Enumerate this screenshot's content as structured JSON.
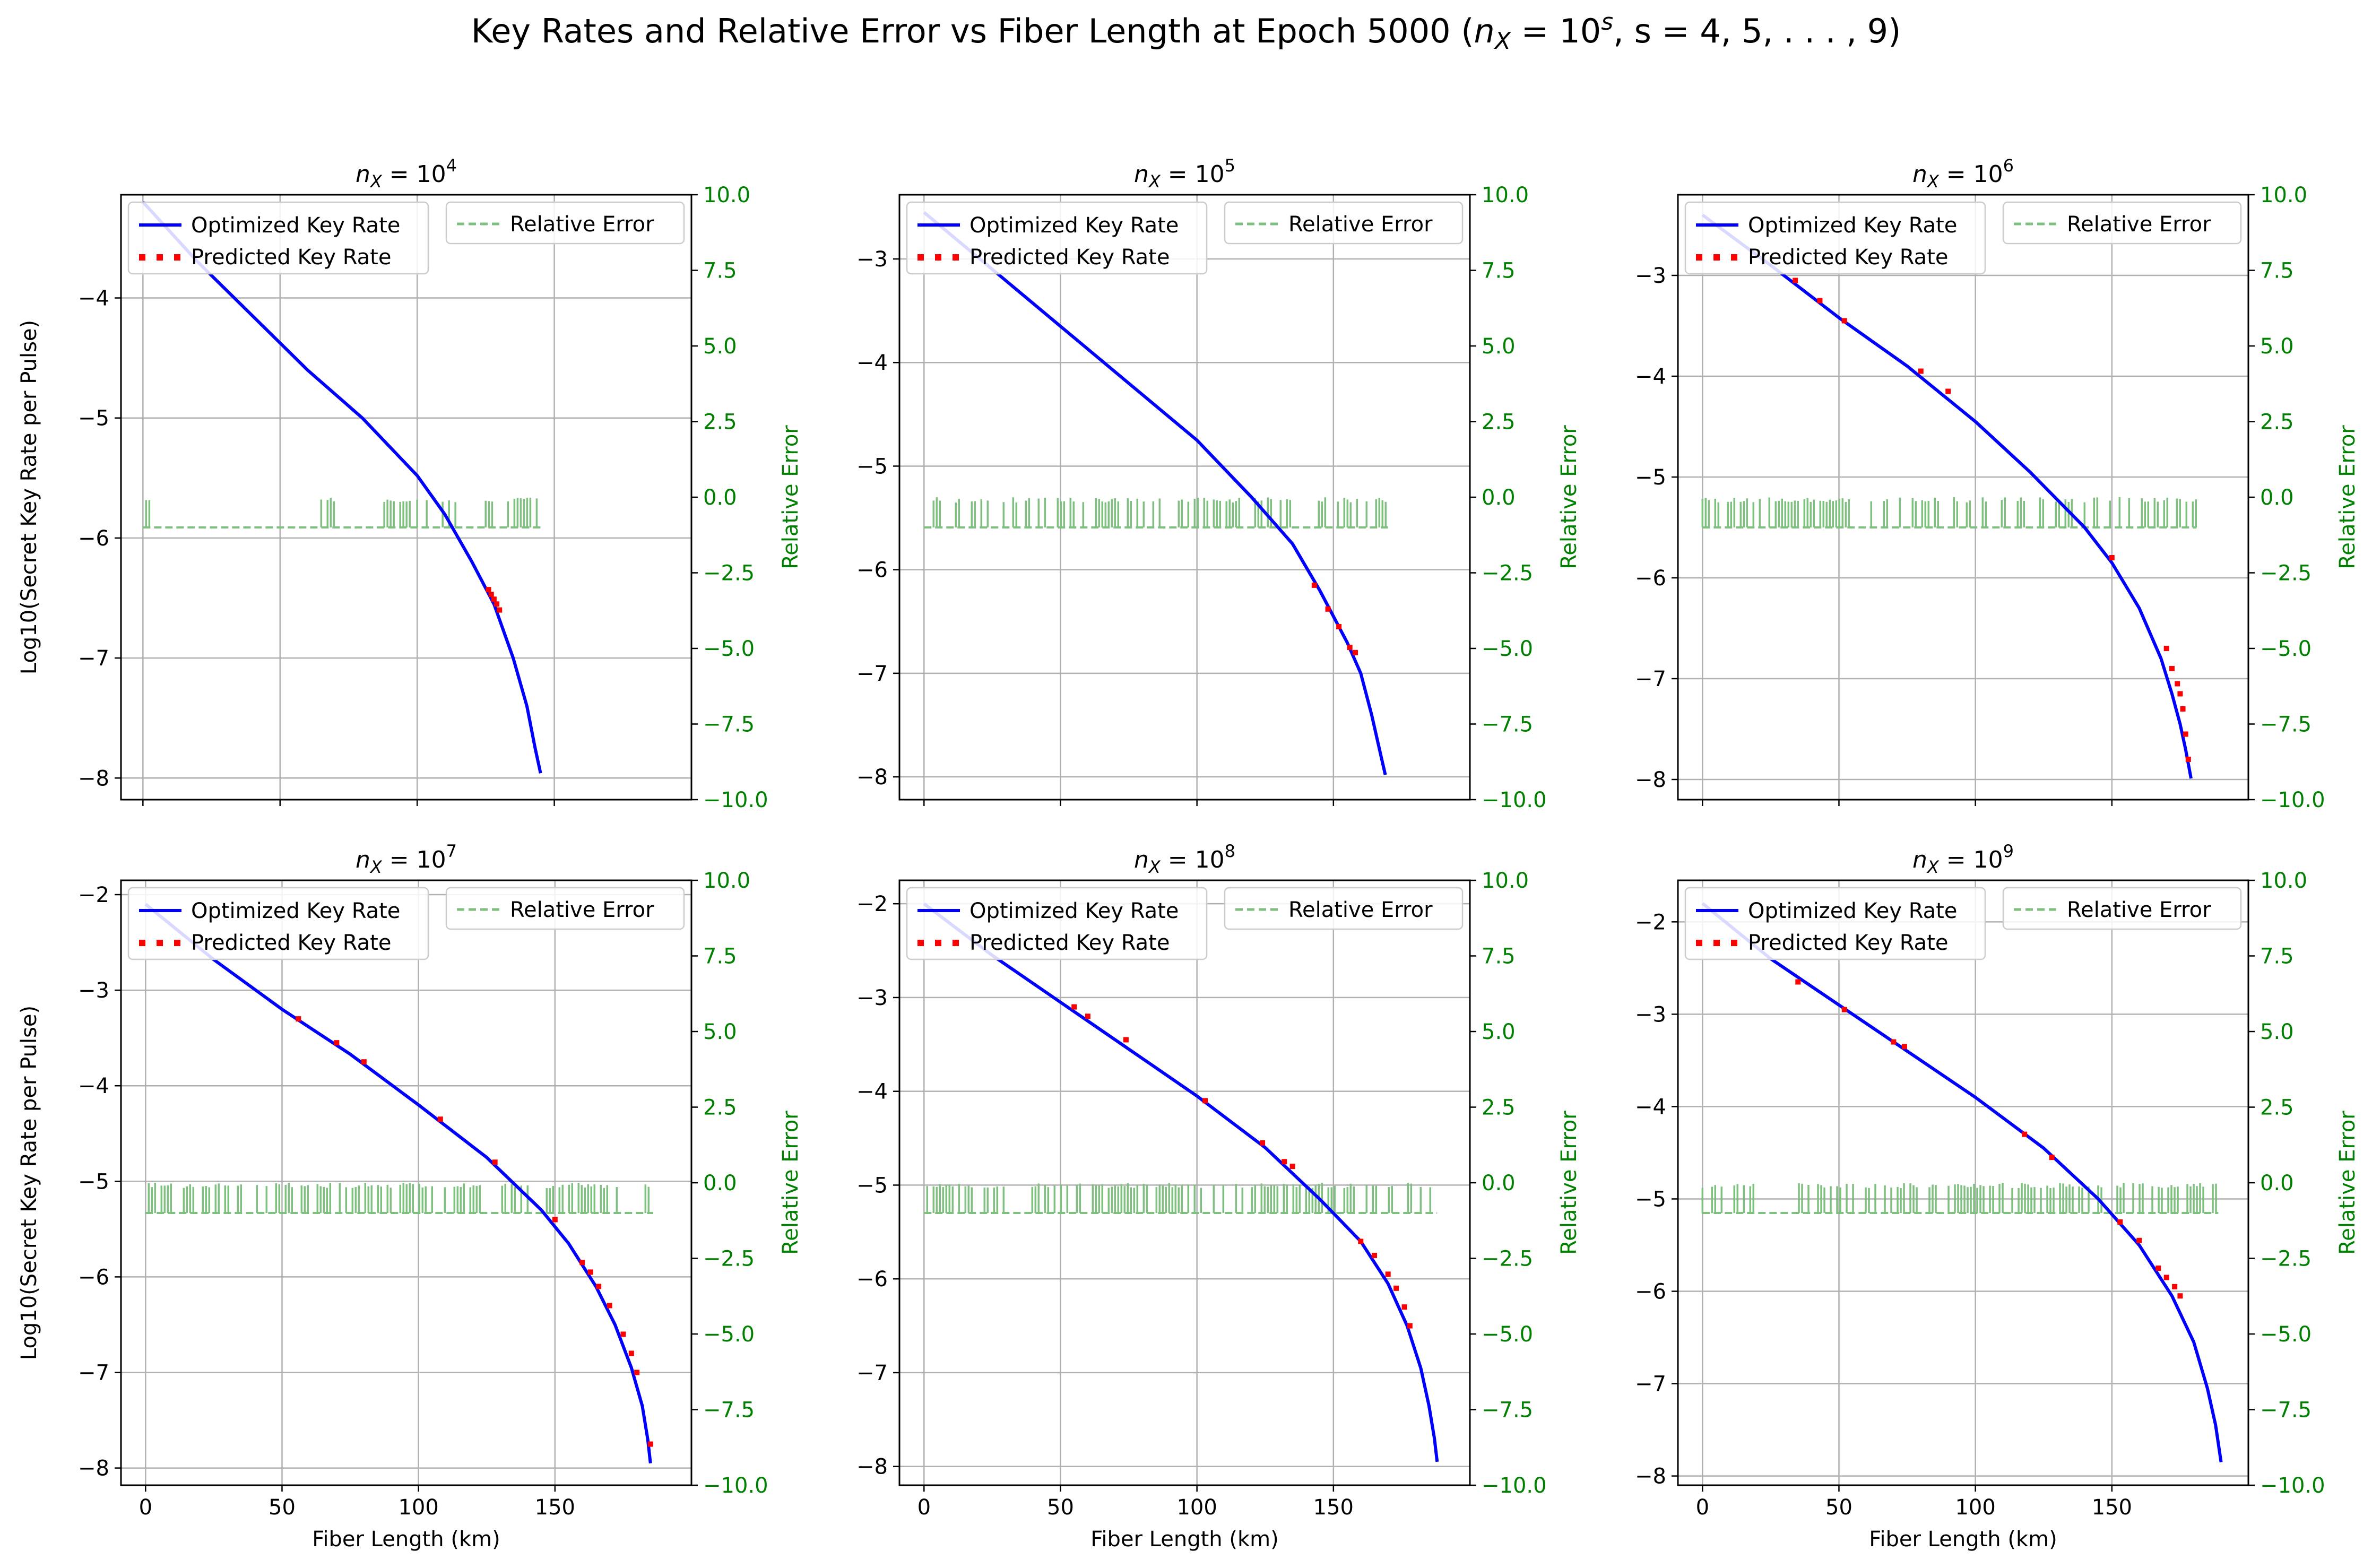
{
  "figure": {
    "title": "Key Rates and Relative Error vs Fiber Length at Epoch 5000 ($n_X = 10^s, s = 4, 5, ..., 9$)",
    "title_parts": {
      "prefix": "Key Rates and Relative Error vs Fiber Length at Epoch 5000 (",
      "expr": "n",
      "sub": "X",
      "eq": " = 10",
      "sup": "s",
      "suffix": ", s = 4, 5, . . . , 9)"
    }
  },
  "colors": {
    "optimized": "#0000ff",
    "predicted": "#ff0000",
    "relative_error": "#7fbf7f",
    "right_axis": "#008000",
    "grid": "#b0b0b0"
  },
  "chart_data": [
    {
      "type": "line",
      "title": "n_X = 10^4",
      "title_base": "10",
      "title_exp": "4",
      "xlabel": "",
      "ylabel": "Log10(Secret Key Rate per Pulse)",
      "ylabel_right": "Relative Error",
      "xlim": [
        -8,
        200
      ],
      "ylim": [
        -8.18,
        -3.14
      ],
      "y2lim": [
        -10,
        10
      ],
      "xticks": [
        0,
        50,
        100,
        150
      ],
      "yticks": [
        -8,
        -7,
        -6,
        -5,
        -4
      ],
      "y2ticks": [
        -10.0,
        -7.5,
        -5.0,
        -2.5,
        0.0,
        2.5,
        5.0,
        7.5,
        10.0
      ],
      "show_xticklabels": false,
      "grid": true,
      "legend_left": [
        "Optimized Key Rate",
        "Predicted Key Rate"
      ],
      "legend_right": [
        "Relative Error"
      ],
      "legend_placement": [
        "upper left",
        "upper right"
      ],
      "series": [
        {
          "name": "Optimized Key Rate",
          "style": "solid",
          "x": [
            0,
            20,
            40,
            60,
            80,
            100,
            110,
            120,
            128,
            135,
            140,
            143,
            145
          ],
          "y": [
            -3.2,
            -3.7,
            -4.15,
            -4.6,
            -5.0,
            -5.48,
            -5.8,
            -6.2,
            -6.55,
            -7.0,
            -7.4,
            -7.75,
            -7.96
          ]
        },
        {
          "name": "Predicted Key Rate",
          "style": "dotted",
          "x": [
            126,
            127,
            128,
            129,
            130
          ],
          "y": [
            -6.43,
            -6.47,
            -6.51,
            -6.55,
            -6.6
          ]
        },
        {
          "name": "Relative Error",
          "axis": "right",
          "style": "dashed",
          "level": -1.0,
          "x_range": [
            0,
            146
          ],
          "spike_segments": [
            [
              0,
              6
            ],
            [
              65,
              75
            ],
            [
              88,
              98
            ],
            [
              100,
              115
            ],
            [
              118,
              125
            ],
            [
              125,
              146
            ]
          ],
          "spike_top": 0.0
        }
      ]
    },
    {
      "type": "line",
      "title": "n_X = 10^5",
      "title_base": "10",
      "title_exp": "5",
      "xlabel": "",
      "ylabel": "",
      "ylabel_right": "Relative Error",
      "xlim": [
        -9,
        200
      ],
      "ylim": [
        -8.22,
        -2.38
      ],
      "y2lim": [
        -10,
        10
      ],
      "xticks": [
        0,
        50,
        100,
        150
      ],
      "yticks": [
        -8,
        -7,
        -6,
        -5,
        -4,
        -3
      ],
      "y2ticks": [
        -10.0,
        -7.5,
        -5.0,
        -2.5,
        0.0,
        2.5,
        5.0,
        7.5,
        10.0
      ],
      "show_xticklabels": false,
      "grid": true,
      "legend_left": [
        "Optimized Key Rate",
        "Predicted Key Rate"
      ],
      "legend_right": [
        "Relative Error"
      ],
      "legend_placement": [
        "upper left",
        "upper right"
      ],
      "series": [
        {
          "name": "Optimized Key Rate",
          "style": "solid",
          "x": [
            0,
            25,
            50,
            75,
            100,
            120,
            135,
            145,
            150,
            155,
            160,
            164,
            167,
            169
          ],
          "y": [
            -2.55,
            -3.1,
            -3.65,
            -4.2,
            -4.75,
            -5.3,
            -5.75,
            -6.2,
            -6.45,
            -6.7,
            -7.0,
            -7.4,
            -7.75,
            -7.98
          ]
        },
        {
          "name": "Predicted Key Rate",
          "style": "dotted",
          "x": [
            143,
            148,
            152,
            156,
            158
          ],
          "y": [
            -6.15,
            -6.38,
            -6.55,
            -6.75,
            -6.8
          ]
        },
        {
          "name": "Relative Error",
          "axis": "right",
          "style": "dashed",
          "level": -1.0,
          "x_range": [
            0,
            170
          ],
          "spike_segments": [
            [
              0,
              170
            ]
          ],
          "spike_top": 0.0
        }
      ]
    },
    {
      "type": "line",
      "title": "n_X = 10^6",
      "title_base": "10",
      "title_exp": "6",
      "xlabel": "",
      "ylabel": "",
      "ylabel_right": "Relative Error",
      "xlim": [
        -9,
        200
      ],
      "ylim": [
        -8.2,
        -2.2
      ],
      "y2lim": [
        -10,
        10
      ],
      "xticks": [
        0,
        50,
        100,
        150
      ],
      "yticks": [
        -8,
        -7,
        -6,
        -5,
        -4,
        -3
      ],
      "y2ticks": [
        -10.0,
        -7.5,
        -5.0,
        -2.5,
        0.0,
        2.5,
        5.0,
        7.5,
        10.0
      ],
      "show_xticklabels": false,
      "grid": true,
      "legend_left": [
        "Optimized Key Rate",
        "Predicted Key Rate"
      ],
      "legend_right": [
        "Relative Error"
      ],
      "legend_placement": [
        "upper left",
        "upper right"
      ],
      "series": [
        {
          "name": "Optimized Key Rate",
          "style": "solid",
          "x": [
            0,
            25,
            50,
            75,
            100,
            120,
            140,
            150,
            160,
            168,
            172,
            175,
            177,
            179
          ],
          "y": [
            -2.4,
            -2.9,
            -3.42,
            -3.9,
            -4.45,
            -4.95,
            -5.5,
            -5.85,
            -6.3,
            -6.8,
            -7.15,
            -7.45,
            -7.7,
            -7.99
          ]
        },
        {
          "name": "Predicted Key Rate",
          "style": "dotted",
          "x": [
            34,
            43,
            52,
            80,
            90,
            150,
            170,
            172,
            174,
            175,
            176,
            177,
            178
          ],
          "y": [
            -3.05,
            -3.25,
            -3.45,
            -3.95,
            -4.15,
            -5.8,
            -6.7,
            -6.9,
            -7.05,
            -7.15,
            -7.3,
            -7.55,
            -7.8
          ]
        },
        {
          "name": "Relative Error",
          "axis": "right",
          "style": "dashed",
          "level": -1.0,
          "x_range": [
            0,
            181
          ],
          "spike_segments": [
            [
              0,
              181
            ]
          ],
          "spike_top": 0.0
        }
      ]
    },
    {
      "type": "line",
      "title": "n_X = 10^7",
      "title_base": "10",
      "title_exp": "7",
      "xlabel": "Fiber Length (km)",
      "ylabel": "Log10(Secret Key Rate per Pulse)",
      "ylabel_right": "Relative Error",
      "xlim": [
        -9,
        200
      ],
      "ylim": [
        -8.18,
        -1.85
      ],
      "y2lim": [
        -10,
        10
      ],
      "xticks": [
        0,
        50,
        100,
        150
      ],
      "yticks": [
        -8,
        -7,
        -6,
        -5,
        -4,
        -3,
        -2
      ],
      "y2ticks": [
        -10.0,
        -7.5,
        -5.0,
        -2.5,
        0.0,
        2.5,
        5.0,
        7.5,
        10.0
      ],
      "show_xticklabels": true,
      "grid": true,
      "legend_left": [
        "Optimized Key Rate",
        "Predicted Key Rate"
      ],
      "legend_right": [
        "Relative Error"
      ],
      "legend_placement": [
        "upper left",
        "upper right"
      ],
      "series": [
        {
          "name": "Optimized Key Rate",
          "style": "solid",
          "x": [
            0,
            25,
            50,
            75,
            100,
            125,
            145,
            155,
            165,
            172,
            178,
            182,
            184,
            185
          ],
          "y": [
            -2.1,
            -2.68,
            -3.2,
            -3.67,
            -4.2,
            -4.75,
            -5.3,
            -5.65,
            -6.1,
            -6.5,
            -6.95,
            -7.35,
            -7.7,
            -7.95
          ]
        },
        {
          "name": "Predicted Key Rate",
          "style": "dotted",
          "x": [
            56,
            70,
            80,
            108,
            128,
            150,
            160,
            163,
            166,
            170,
            175,
            178,
            180,
            185
          ],
          "y": [
            -3.3,
            -3.55,
            -3.75,
            -4.35,
            -4.8,
            -5.4,
            -5.85,
            -5.95,
            -6.1,
            -6.3,
            -6.6,
            -6.8,
            -7.0,
            -7.75
          ]
        },
        {
          "name": "Relative Error",
          "axis": "right",
          "style": "dashed",
          "level": -1.0,
          "x_range": [
            0,
            186
          ],
          "spike_segments": [
            [
              0,
              186
            ]
          ],
          "spike_top": 0.0
        }
      ]
    },
    {
      "type": "line",
      "title": "n_X = 10^8",
      "title_base": "10",
      "title_exp": "8",
      "xlabel": "Fiber Length (km)",
      "ylabel": "",
      "ylabel_right": "Relative Error",
      "xlim": [
        -9,
        200
      ],
      "ylim": [
        -8.2,
        -1.75
      ],
      "y2lim": [
        -10,
        10
      ],
      "xticks": [
        0,
        50,
        100,
        150
      ],
      "yticks": [
        -8,
        -7,
        -6,
        -5,
        -4,
        -3,
        -2
      ],
      "y2ticks": [
        -10.0,
        -7.5,
        -5.0,
        -2.5,
        0.0,
        2.5,
        5.0,
        7.5,
        10.0
      ],
      "show_xticklabels": true,
      "grid": true,
      "legend_left": [
        "Optimized Key Rate",
        "Predicted Key Rate"
      ],
      "legend_right": [
        "Relative Error"
      ],
      "legend_placement": [
        "upper left",
        "upper right"
      ],
      "series": [
        {
          "name": "Optimized Key Rate",
          "style": "solid",
          "x": [
            0,
            25,
            50,
            75,
            100,
            125,
            145,
            160,
            170,
            177,
            182,
            185,
            187,
            188
          ],
          "y": [
            -2.0,
            -2.55,
            -3.05,
            -3.55,
            -4.05,
            -4.6,
            -5.15,
            -5.6,
            -6.05,
            -6.5,
            -6.95,
            -7.35,
            -7.7,
            -7.95
          ]
        },
        {
          "name": "Predicted Key Rate",
          "style": "dotted",
          "x": [
            55,
            60,
            74,
            103,
            124,
            132,
            135,
            160,
            165,
            170,
            173,
            176,
            178
          ],
          "y": [
            -3.1,
            -3.2,
            -3.45,
            -4.1,
            -4.55,
            -4.75,
            -4.8,
            -5.6,
            -5.75,
            -5.95,
            -6.1,
            -6.3,
            -6.5
          ]
        },
        {
          "name": "Relative Error",
          "axis": "right",
          "style": "dashed",
          "level": -1.0,
          "x_range": [
            0,
            188
          ],
          "spike_segments": [
            [
              0,
              188
            ]
          ],
          "spike_top": 0.0
        }
      ]
    },
    {
      "type": "line",
      "title": "n_X = 10^9",
      "title_base": "10",
      "title_exp": "9",
      "xlabel": "Fiber Length (km)",
      "ylabel": "",
      "ylabel_right": "Relative Error",
      "xlim": [
        -9,
        200
      ],
      "ylim": [
        -8.1,
        -1.55
      ],
      "y2lim": [
        -10,
        10
      ],
      "xticks": [
        0,
        50,
        100,
        150
      ],
      "yticks": [
        -8,
        -7,
        -6,
        -5,
        -4,
        -3,
        -2
      ],
      "y2ticks": [
        -10.0,
        -7.5,
        -5.0,
        -2.5,
        0.0,
        2.5,
        5.0,
        7.5,
        10.0
      ],
      "show_xticklabels": true,
      "grid": true,
      "legend_left": [
        "Optimized Key Rate",
        "Predicted Key Rate"
      ],
      "legend_right": [
        "Relative Error"
      ],
      "legend_placement": [
        "upper left",
        "upper right"
      ],
      "series": [
        {
          "name": "Optimized Key Rate",
          "style": "solid",
          "x": [
            0,
            25,
            50,
            75,
            100,
            125,
            145,
            160,
            172,
            180,
            185,
            188,
            190
          ],
          "y": [
            -1.8,
            -2.4,
            -2.9,
            -3.4,
            -3.9,
            -4.45,
            -5.0,
            -5.5,
            -6.05,
            -6.55,
            -7.05,
            -7.45,
            -7.85
          ]
        },
        {
          "name": "Predicted Key Rate",
          "style": "dotted",
          "x": [
            35,
            52,
            70,
            74,
            118,
            128,
            153,
            160,
            167,
            170,
            173,
            175
          ],
          "y": [
            -2.65,
            -2.95,
            -3.3,
            -3.35,
            -4.3,
            -4.55,
            -5.25,
            -5.45,
            -5.75,
            -5.85,
            -5.95,
            -6.05
          ]
        },
        {
          "name": "Relative Error",
          "axis": "right",
          "style": "dashed",
          "level": -1.0,
          "x_range": [
            0,
            189
          ],
          "spike_segments": [
            [
              0,
              20
            ],
            [
              33,
              189
            ]
          ],
          "spike_top": 0.0
        }
      ]
    }
  ]
}
